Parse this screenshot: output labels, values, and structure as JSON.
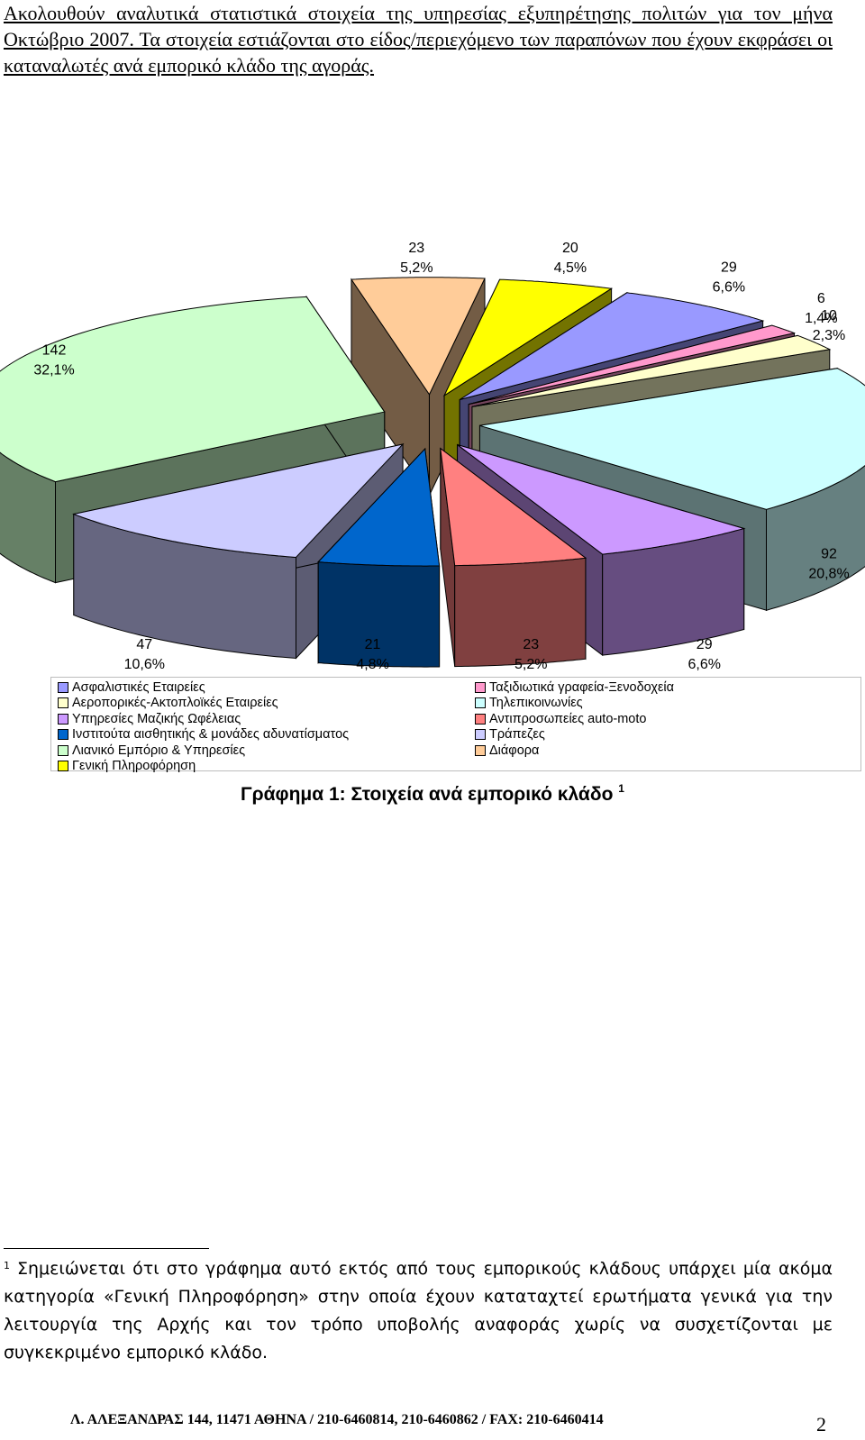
{
  "intro_text": "Ακολουθούν αναλυτικά στατιστικά στοιχεία της υπηρεσίας εξυπηρέτησης πολιτών για τον μήνα Οκτώβριο 2007. Τα στοιχεία εστιάζονται στο είδος/περιεχόμενο των παραπόνων που έχουν εκφράσει οι καταναλωτές ανά εμπορικό κλάδο της αγοράς.",
  "chart_data": {
    "type": "pie",
    "style": "3d-exploded",
    "legend_position": "bottom",
    "slices": [
      {
        "category": "Ασφαλιστικές Εταιρείες",
        "value": 29,
        "percent": "6,6%",
        "color": "#9999FF"
      },
      {
        "category": "Ταξιδιωτικά γραφεία-Ξενοδοχεία",
        "value": 6,
        "percent": "1,4%",
        "color": "#FF99CC"
      },
      {
        "category": "Αεροπορικές-Ακτοπλοϊκές Εταιρείες",
        "value": 10,
        "percent": "2,3%",
        "color": "#FFFFCC"
      },
      {
        "category": "Τηλεπικοινωνίες",
        "value": 92,
        "percent": "20,8%",
        "color": "#CCFFFF"
      },
      {
        "category": "Υπηρεσίες Μαζικής Ωφέλειας",
        "value": 29,
        "percent": "6,6%",
        "color": "#CC99FF"
      },
      {
        "category": "Αντιπροσωπείες auto-moto",
        "value": 23,
        "percent": "5,2%",
        "color": "#FF8080"
      },
      {
        "category": "Ινστιτούτα αισθητικής & μονάδες αδυνατίσματος",
        "value": 21,
        "percent": "4,8%",
        "color": "#0066CC"
      },
      {
        "category": "Τράπεζες",
        "value": 47,
        "percent": "10,6%",
        "color": "#CCCCFF"
      },
      {
        "category": "Λιανικό Εμπόριο & Υπηρεσίες",
        "value": 142,
        "percent": "32,1%",
        "color": "#CCFFCC"
      },
      {
        "category": "Διάφορα",
        "value": 23,
        "percent": "5,2%",
        "color": "#FFCC99"
      },
      {
        "category": "Γενική Πληροφόρηση",
        "value": 20,
        "percent": "4,5%",
        "color": "#FFFF00"
      }
    ],
    "legend_left": [
      "Ασφαλιστικές Εταιρείες",
      "Αεροπορικές-Ακτοπλοϊκές Εταιρείες",
      "Υπηρεσίες Μαζικής Ωφέλειας",
      "Ινστιτούτα αισθητικής & μονάδες αδυνατίσματος",
      "Λιανικό Εμπόριο & Υπηρεσίες",
      "Γενική Πληροφόρηση"
    ],
    "legend_right": [
      "Ταξιδιωτικά γραφεία-Ξενοδοχεία",
      "Τηλεπικοινωνίες",
      "Αντιπροσωπείες auto-moto",
      "Τράπεζες",
      "Διάφορα"
    ]
  },
  "caption": {
    "text": "Γράφημα 1: Στοιχεία ανά εμπορικό κλάδο",
    "footnote_ref": "1"
  },
  "footnote": {
    "marker": "1",
    "text": "Σημειώνεται ότι στο γράφημα αυτό εκτός από τους εμπορικούς κλάδους υπάρχει μία ακόμα κατηγορία «Γενική Πληροφόρηση» στην οποία έχουν καταταχτεί ερωτήματα γενικά για την λειτουργία της Αρχής και τον τρόπο υποβολής αναφοράς χωρίς να συσχετίζονται με συγκεκριμένο εμπορικό κλάδο."
  },
  "footer": {
    "address": "Λ. ΑΛΕΞΑΝΔΡΑΣ 144,  11471 ΑΘΗΝΑ / 210-6460814, 210-6460862 / FAX: 210-6460414",
    "page_number": "2"
  }
}
